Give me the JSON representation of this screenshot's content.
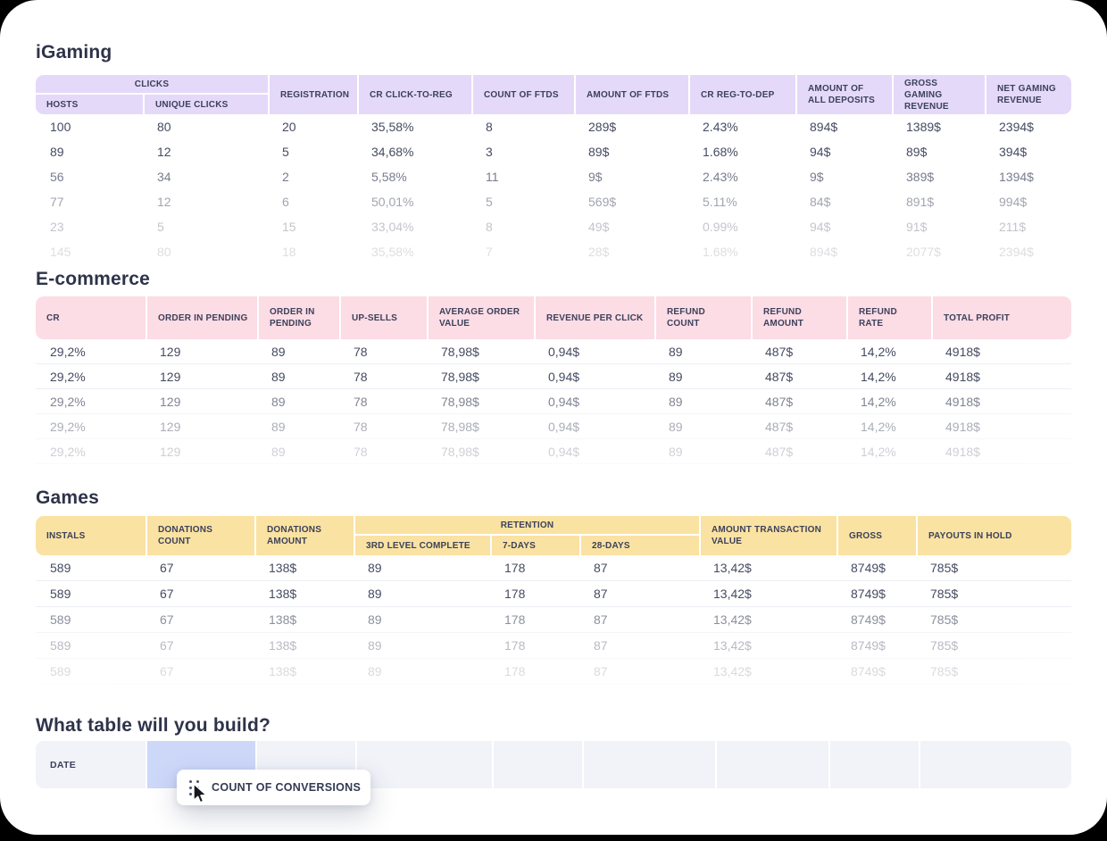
{
  "colors": {
    "page_background": "#000000",
    "card_background": "#ffffff",
    "igaming_accent": "#e5d9f9",
    "ecommerce_accent": "#fcdce5",
    "games_accent": "#fae2a2",
    "builder_cell": "#f1f3f9",
    "builder_highlight": "#cdd8f9",
    "text_dark": "#2e3349"
  },
  "igaming": {
    "title": "iGaming",
    "group_header": "CLICKS",
    "headers": [
      "HOSTS",
      "UNIQUE CLICKS",
      "REGISTRATION",
      "CR CLICK-TO-REG",
      "COUNT OF FTDS",
      "AMOUNT OF FTDS",
      "CR REG-TO-DEP",
      "AMOUNT OF ALL DEPOSITS",
      "GROSS GAMING REVENUE",
      "NET GAMING REVENUE"
    ],
    "rows": [
      [
        "100",
        "80",
        "20",
        "35,58%",
        "8",
        "289$",
        "2.43%",
        "894$",
        "1389$",
        "2394$"
      ],
      [
        "89",
        "12",
        "5",
        "34,68%",
        "3",
        "89$",
        "1.68%",
        "94$",
        "89$",
        "394$"
      ],
      [
        "56",
        "34",
        "2",
        "5,58%",
        "11",
        "9$",
        "2.43%",
        "9$",
        "389$",
        "1394$"
      ],
      [
        "77",
        "12",
        "6",
        "50,01%",
        "5",
        "569$",
        "5.11%",
        "84$",
        "891$",
        "994$"
      ],
      [
        "23",
        "5",
        "15",
        "33,04%",
        "8",
        "49$",
        "0.99%",
        "94$",
        "91$",
        "211$"
      ],
      [
        "145",
        "80",
        "18",
        "35,58%",
        "7",
        "28$",
        "1.68%",
        "894$",
        "2077$",
        "2394$"
      ]
    ]
  },
  "ecommerce": {
    "title": "E-commerce",
    "headers": [
      "CR",
      "ORDER IN PENDING",
      "ORDER IN PENDING",
      "UP-SELLS",
      "AVERAGE ORDER VALUE",
      "REVENUE PER CLICK",
      "REFUND COUNT",
      "REFUND AMOUNT",
      "REFUND RATE",
      "TOTAL PROFIT"
    ],
    "rows": [
      [
        "29,2%",
        "129",
        "89",
        "78",
        "78,98$",
        "0,94$",
        "89",
        "487$",
        "14,2%",
        "4918$"
      ],
      [
        "29,2%",
        "129",
        "89",
        "78",
        "78,98$",
        "0,94$",
        "89",
        "487$",
        "14,2%",
        "4918$"
      ],
      [
        "29,2%",
        "129",
        "89",
        "78",
        "78,98$",
        "0,94$",
        "89",
        "487$",
        "14,2%",
        "4918$"
      ],
      [
        "29,2%",
        "129",
        "89",
        "78",
        "78,98$",
        "0,94$",
        "89",
        "487$",
        "14,2%",
        "4918$"
      ],
      [
        "29,2%",
        "129",
        "89",
        "78",
        "78,98$",
        "0,94$",
        "89",
        "487$",
        "14,2%",
        "4918$"
      ],
      [
        "29,2%",
        "129",
        "89",
        "78",
        "78,98$",
        "0,94$",
        "89",
        "487$",
        "14,2%",
        "4918$"
      ]
    ]
  },
  "games": {
    "title": "Games",
    "group_header": "RETENTION",
    "headers": [
      "INSTALS",
      "DONATIONS COUNT",
      "DONATIONS AMOUNT",
      "3RD LEVEL COMPLETE",
      "7-DAYS",
      "28-DAYS",
      "AMOUNT TRANSACTION VALUE",
      "GROSS",
      "PAYOUTS IN HOLD"
    ],
    "rows": [
      [
        "589",
        "67",
        "138$",
        "89",
        "178",
        "87",
        "13,42$",
        "8749$",
        "785$"
      ],
      [
        "589",
        "67",
        "138$",
        "89",
        "178",
        "87",
        "13,42$",
        "8749$",
        "785$"
      ],
      [
        "589",
        "67",
        "138$",
        "89",
        "178",
        "87",
        "13,42$",
        "8749$",
        "785$"
      ],
      [
        "589",
        "67",
        "138$",
        "89",
        "178",
        "87",
        "13,42$",
        "8749$",
        "785$"
      ],
      [
        "589",
        "67",
        "138$",
        "89",
        "178",
        "87",
        "13,42$",
        "8749$",
        "785$"
      ]
    ]
  },
  "builder": {
    "title": "What table will you build?",
    "date_label": "DATE",
    "chip_label": "COUNT OF CONVERSIONS"
  }
}
